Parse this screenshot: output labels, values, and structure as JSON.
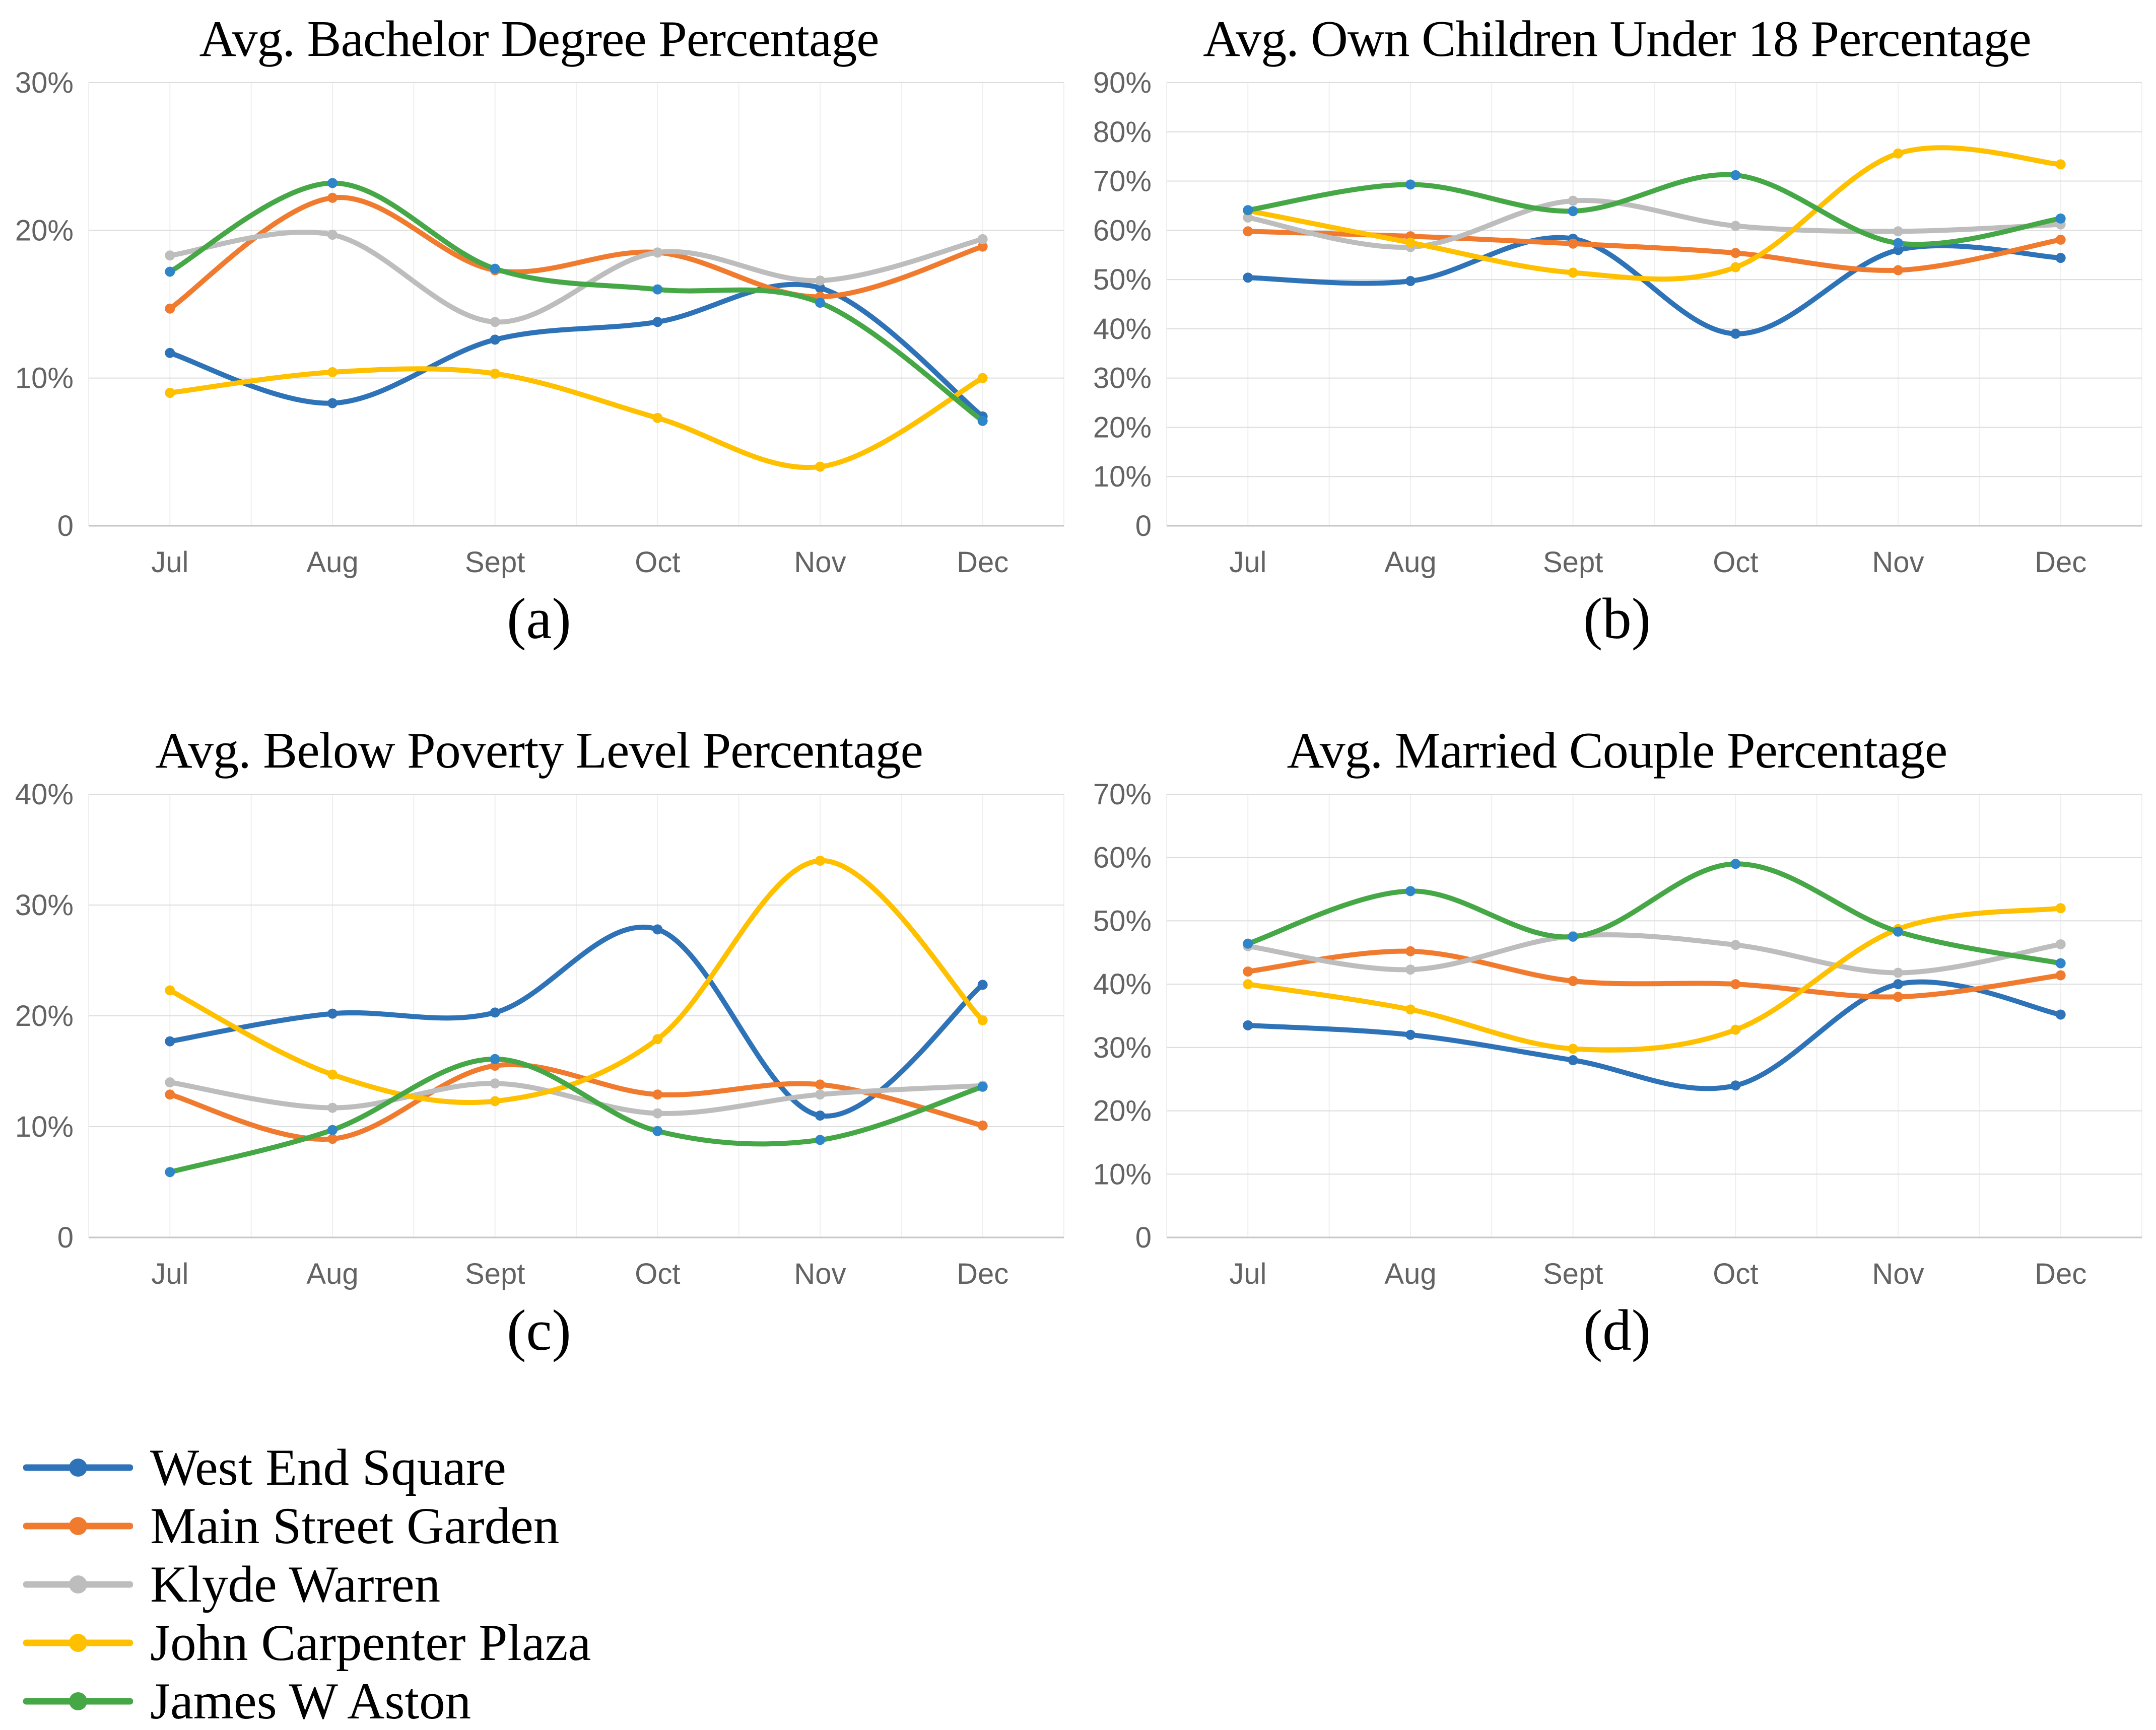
{
  "legend": {
    "items": [
      {
        "label": "West End Square",
        "color": "#2E72B8"
      },
      {
        "label": "Main Street Garden",
        "color": "#F07B2F"
      },
      {
        "label": "Klyde Warren",
        "color": "#BDBDBD"
      },
      {
        "label": "John Carpenter Plaza",
        "color": "#FFC000"
      },
      {
        "label": "James W Aston",
        "color": "#46A746",
        "chart_marker_color": "#2E86C8"
      }
    ]
  },
  "axis_style": {
    "tick_label_color": "#636363",
    "major_gridline_color": "#DCDCDC",
    "zero_line_color": "#C6C6C6",
    "minor_vertical_gridline_color": "#EFEFEF"
  },
  "chart_data": [
    {
      "type": "line",
      "title": "Avg. Bachelor Degree Percentage",
      "caption": "(a)",
      "categories": [
        "Jul",
        "Aug",
        "Sept",
        "Oct",
        "Nov",
        "Dec"
      ],
      "xlabel": "",
      "ylabel": "",
      "ylim": [
        0,
        30
      ],
      "ytick_step": 10,
      "grid": true,
      "legend_position": "bottom-left-shared",
      "series": [
        {
          "name": "West End Square",
          "values": [
            11.7,
            8.3,
            12.6,
            13.8,
            16.1,
            7.4
          ]
        },
        {
          "name": "Main Street Garden",
          "values": [
            14.7,
            22.2,
            17.3,
            18.5,
            15.5,
            18.9
          ]
        },
        {
          "name": "Klyde Warren",
          "values": [
            18.3,
            19.7,
            13.8,
            18.5,
            16.6,
            19.4
          ]
        },
        {
          "name": "John Carpenter Plaza",
          "values": [
            9.0,
            10.4,
            10.3,
            7.3,
            4.0,
            10.0
          ]
        },
        {
          "name": "James W Aston",
          "values": [
            17.2,
            23.2,
            17.4,
            16.0,
            15.1,
            7.1
          ]
        }
      ]
    },
    {
      "type": "line",
      "title": "Avg. Own Children Under 18 Percentage",
      "caption": "(b)",
      "categories": [
        "Jul",
        "Aug",
        "Sept",
        "Oct",
        "Nov",
        "Dec"
      ],
      "xlabel": "",
      "ylabel": "",
      "ylim": [
        0,
        90
      ],
      "ytick_step": 10,
      "grid": true,
      "legend_position": "bottom-left-shared",
      "series": [
        {
          "name": "West End Square",
          "values": [
            50.4,
            49.7,
            58.3,
            39.0,
            56.0,
            54.4
          ]
        },
        {
          "name": "Main Street Garden",
          "values": [
            59.8,
            58.8,
            57.3,
            55.4,
            51.9,
            58.1
          ]
        },
        {
          "name": "Klyde Warren",
          "values": [
            62.6,
            56.6,
            66.0,
            60.9,
            59.8,
            61.2
          ]
        },
        {
          "name": "John Carpenter Plaza",
          "values": [
            64.0,
            57.5,
            51.4,
            52.5,
            75.6,
            73.4
          ]
        },
        {
          "name": "James W Aston",
          "values": [
            64.1,
            69.3,
            63.9,
            71.2,
            57.4,
            62.4
          ]
        }
      ]
    },
    {
      "type": "line",
      "title": "Avg. Below Poverty Level Percentage",
      "caption": "(c)",
      "categories": [
        "Jul",
        "Aug",
        "Sept",
        "Oct",
        "Nov",
        "Dec"
      ],
      "xlabel": "",
      "ylabel": "",
      "ylim": [
        0,
        40
      ],
      "ytick_step": 10,
      "grid": true,
      "legend_position": "bottom-left-shared",
      "series": [
        {
          "name": "West End Square",
          "values": [
            17.7,
            20.2,
            20.3,
            27.8,
            11.0,
            22.8
          ]
        },
        {
          "name": "Main Street Garden",
          "values": [
            12.9,
            8.9,
            15.5,
            12.9,
            13.8,
            10.1
          ]
        },
        {
          "name": "Klyde Warren",
          "values": [
            14.0,
            11.7,
            13.9,
            11.2,
            12.9,
            13.7
          ]
        },
        {
          "name": "John Carpenter Plaza",
          "values": [
            22.3,
            14.7,
            12.3,
            17.9,
            34.0,
            19.6
          ]
        },
        {
          "name": "James W Aston",
          "values": [
            5.9,
            9.7,
            16.1,
            9.6,
            8.8,
            13.6
          ]
        }
      ]
    },
    {
      "type": "line",
      "title": "Avg. Married Couple Percentage",
      "caption": "(d)",
      "categories": [
        "Jul",
        "Aug",
        "Sept",
        "Oct",
        "Nov",
        "Dec"
      ],
      "xlabel": "",
      "ylabel": "",
      "ylim": [
        0,
        70
      ],
      "ytick_step": 10,
      "grid": true,
      "legend_position": "bottom-left-shared",
      "series": [
        {
          "name": "West End Square",
          "values": [
            33.5,
            32.0,
            28.0,
            24.0,
            40.0,
            35.2
          ]
        },
        {
          "name": "Main Street Garden",
          "values": [
            42.0,
            45.2,
            40.5,
            40.0,
            38.0,
            41.4
          ]
        },
        {
          "name": "Klyde Warren",
          "values": [
            46.0,
            42.3,
            47.6,
            46.2,
            41.8,
            46.3
          ]
        },
        {
          "name": "John Carpenter Plaza",
          "values": [
            40.0,
            36.0,
            29.8,
            32.8,
            48.7,
            52.0
          ]
        },
        {
          "name": "James W Aston",
          "values": [
            46.4,
            54.7,
            47.5,
            59.0,
            48.3,
            43.3
          ]
        }
      ]
    }
  ]
}
